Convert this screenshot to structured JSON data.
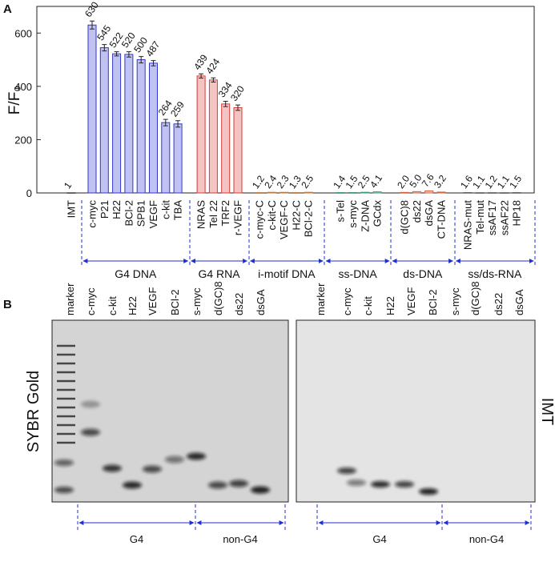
{
  "panel_labels": [
    "A",
    "B"
  ],
  "chart_data": {
    "type": "bar",
    "ylabel": "F/F₀",
    "ylim": [
      0,
      700
    ],
    "yticks": [
      0,
      200,
      400,
      600
    ],
    "groups": [
      {
        "categories": [
          "IMT"
        ],
        "values": [
          1
        ],
        "value_labels": [
          "1"
        ],
        "color": "#555555"
      },
      {
        "name": "G4 DNA",
        "color": "#2f36d0",
        "categories": [
          "c-myc",
          "P21",
          "H22",
          "BCl-2",
          "SPB1",
          "VEGF",
          "c-kit",
          "TBA"
        ],
        "values": [
          630,
          545,
          522,
          520,
          500,
          487,
          264,
          259
        ],
        "value_labels": [
          "630",
          "545",
          "522",
          "520",
          "500",
          "487",
          "264",
          "259"
        ],
        "errors": [
          15,
          12,
          8,
          10,
          12,
          10,
          12,
          12
        ]
      },
      {
        "name": "G4 RNA",
        "color": "#d93a36",
        "categories": [
          "NRAS",
          "Tel 22",
          "TRF2",
          "r-VEGF"
        ],
        "values": [
          439,
          424,
          334,
          320
        ],
        "value_labels": [
          "439",
          "424",
          "334",
          "320"
        ],
        "errors": [
          8,
          8,
          10,
          10
        ]
      },
      {
        "name": "i-motif DNA",
        "color": "#c0783a",
        "categories": [
          "c-myc-C",
          "c-kit-C",
          "VEGF-C",
          "H22-C",
          "BCl-2-C"
        ],
        "values": [
          1.2,
          2.4,
          2.3,
          1.3,
          2.5
        ],
        "value_labels": [
          "1.2",
          "2.4",
          "2.3",
          "1.3",
          "2.5"
        ]
      },
      {
        "name": "ss-DNA",
        "color": "#3a9a7a",
        "categories": [
          "s-Tel",
          "s-myc",
          "Z-DNA",
          "GCdx"
        ],
        "values": [
          1.4,
          1.5,
          2.5,
          4.1
        ],
        "value_labels": [
          "1.4",
          "1.5",
          "2.5",
          "4.1"
        ]
      },
      {
        "name": "ds-DNA",
        "color": "#d0603a",
        "categories": [
          "d(GC)8",
          "ds22",
          "dsGA",
          "CT-DNA"
        ],
        "values": [
          2.0,
          5.0,
          7.6,
          3.2
        ],
        "value_labels": [
          "2.0",
          "5.0",
          "7.6",
          "3.2"
        ]
      },
      {
        "name": "ss/ds-RNA",
        "color": "#666666",
        "categories": [
          "NRAS-mut",
          "Tel-mut",
          "ssAF17",
          "ssAF22",
          "HP18"
        ],
        "values": [
          1.6,
          1.1,
          1.2,
          1.1,
          1.5
        ],
        "value_labels": [
          "1.6",
          "1.1",
          "1.2",
          "1.1",
          "1.5"
        ]
      }
    ]
  },
  "gel": {
    "stain": "SYBR Gold",
    "probe": "IMT",
    "groups": [
      "G4",
      "non-G4"
    ],
    "left": {
      "lanes": [
        "marker",
        "c-myc",
        "c-kit",
        "H22",
        "VEGF",
        "BCl-2",
        "s-myc",
        "d(GC)8",
        "ds22",
        "dsGA"
      ]
    },
    "right": {
      "lanes": [
        "marker",
        "c-myc",
        "c-kit",
        "H22",
        "VEGF",
        "BCl-2",
        "s-myc",
        "d(GC)8",
        "ds22",
        "dsGA"
      ]
    }
  }
}
